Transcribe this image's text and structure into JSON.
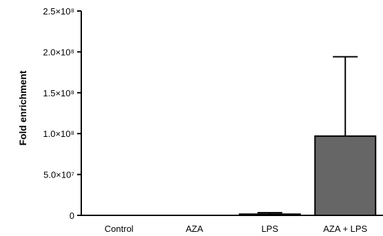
{
  "chart_data": {
    "type": "bar",
    "title": "",
    "xlabel": "",
    "ylabel": "Fold enrichment",
    "ylim": [
      0,
      250000000
    ],
    "yticks": [
      {
        "value": 0,
        "label": "0"
      },
      {
        "value": 50000000,
        "label": "5.0×10⁷"
      },
      {
        "value": 100000000,
        "label": "1.0×10⁸"
      },
      {
        "value": 150000000,
        "label": "1.5×10⁸"
      },
      {
        "value": 200000000,
        "label": "2.0×10⁸"
      },
      {
        "value": 250000000,
        "label": "2.5×10⁸"
      }
    ],
    "categories": [
      "Control",
      "AZA",
      "LPS",
      "AZA + LPS"
    ],
    "values": [
      0,
      0,
      1500000,
      97000000
    ],
    "errors": [
      0,
      0,
      1800000,
      97000000
    ],
    "grid": false,
    "bar_color": "#666666"
  }
}
